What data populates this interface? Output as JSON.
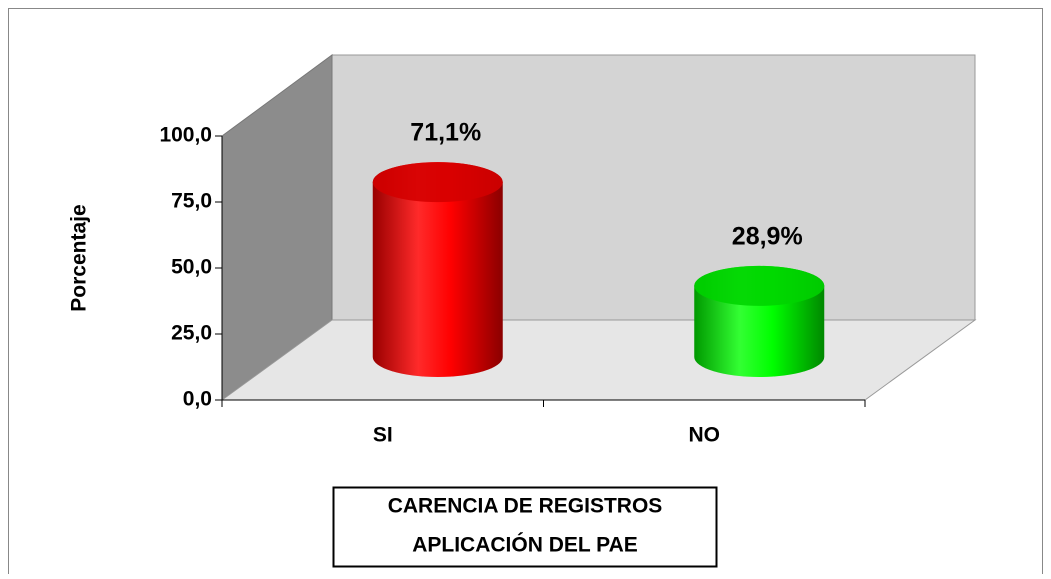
{
  "chart_data": {
    "type": "bar",
    "categories": [
      "SI",
      "NO"
    ],
    "values": [
      71.1,
      28.9
    ],
    "value_labels": [
      "71,1%",
      "28,9%"
    ],
    "colors": [
      "#ff0000",
      "#00ff00"
    ],
    "ylabel": "Porcentaje",
    "xlabel": [
      "CARENCIA DE REGISTROS",
      "APLICACIÓN DEL PAE"
    ],
    "ylim": [
      0,
      100
    ],
    "yticks": [
      {
        "value": 0,
        "label": "0,0"
      },
      {
        "value": 25,
        "label": "25,0"
      },
      {
        "value": 50,
        "label": "50,0"
      },
      {
        "value": 75,
        "label": "75,0"
      },
      {
        "value": 100,
        "label": "100,0"
      }
    ]
  }
}
